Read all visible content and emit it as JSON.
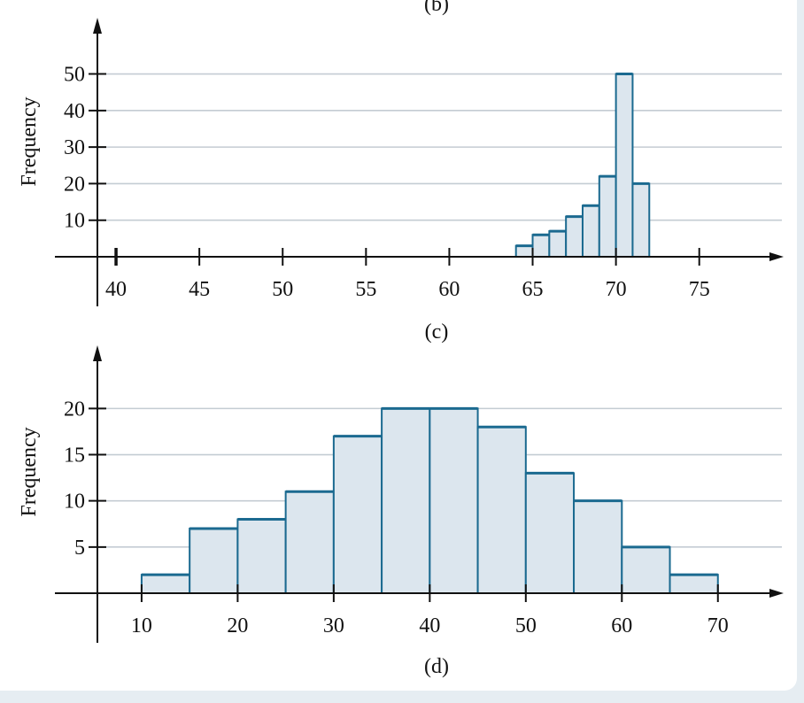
{
  "top_caption": "(b)",
  "chart_data": [
    {
      "type": "bar",
      "caption": "(c)",
      "ylabel": "Frequency",
      "xlabel": "",
      "xticks": [
        40,
        45,
        50,
        55,
        60,
        65,
        70,
        75
      ],
      "yticks": [
        10,
        20,
        30,
        40,
        50
      ],
      "bin_width": 1,
      "bins": [
        {
          "start": 64,
          "end": 65,
          "value": 3
        },
        {
          "start": 65,
          "end": 66,
          "value": 6
        },
        {
          "start": 66,
          "end": 67,
          "value": 7
        },
        {
          "start": 67,
          "end": 68,
          "value": 11
        },
        {
          "start": 68,
          "end": 69,
          "value": 14
        },
        {
          "start": 69,
          "end": 70,
          "value": 22
        },
        {
          "start": 70,
          "end": 71,
          "value": 50
        },
        {
          "start": 71,
          "end": 72,
          "value": 20
        }
      ],
      "xlim": [
        37.5,
        79
      ],
      "ylim": [
        0,
        62
      ],
      "grid": true
    },
    {
      "type": "bar",
      "caption": "(d)",
      "ylabel": "Frequency",
      "xlabel": "",
      "xticks": [
        10,
        20,
        30,
        40,
        50,
        60,
        70
      ],
      "yticks": [
        5,
        10,
        15,
        20
      ],
      "bin_width": 5,
      "bins": [
        {
          "start": 10,
          "end": 15,
          "value": 2
        },
        {
          "start": 15,
          "end": 20,
          "value": 7
        },
        {
          "start": 20,
          "end": 25,
          "value": 8
        },
        {
          "start": 25,
          "end": 30,
          "value": 11
        },
        {
          "start": 30,
          "end": 35,
          "value": 17
        },
        {
          "start": 35,
          "end": 40,
          "value": 20
        },
        {
          "start": 40,
          "end": 45,
          "value": 20
        },
        {
          "start": 45,
          "end": 50,
          "value": 18
        },
        {
          "start": 50,
          "end": 55,
          "value": 13
        },
        {
          "start": 55,
          "end": 60,
          "value": 10
        },
        {
          "start": 60,
          "end": 65,
          "value": 5
        },
        {
          "start": 65,
          "end": 70,
          "value": 2
        }
      ],
      "xlim": [
        3,
        75
      ],
      "ylim": [
        0,
        25.5
      ],
      "grid": true
    }
  ],
  "colors": {
    "bar_fill": "#dce6ee",
    "bar_stroke": "#1b6a90",
    "grid": "#c4ccd3",
    "axis": "#111111"
  }
}
